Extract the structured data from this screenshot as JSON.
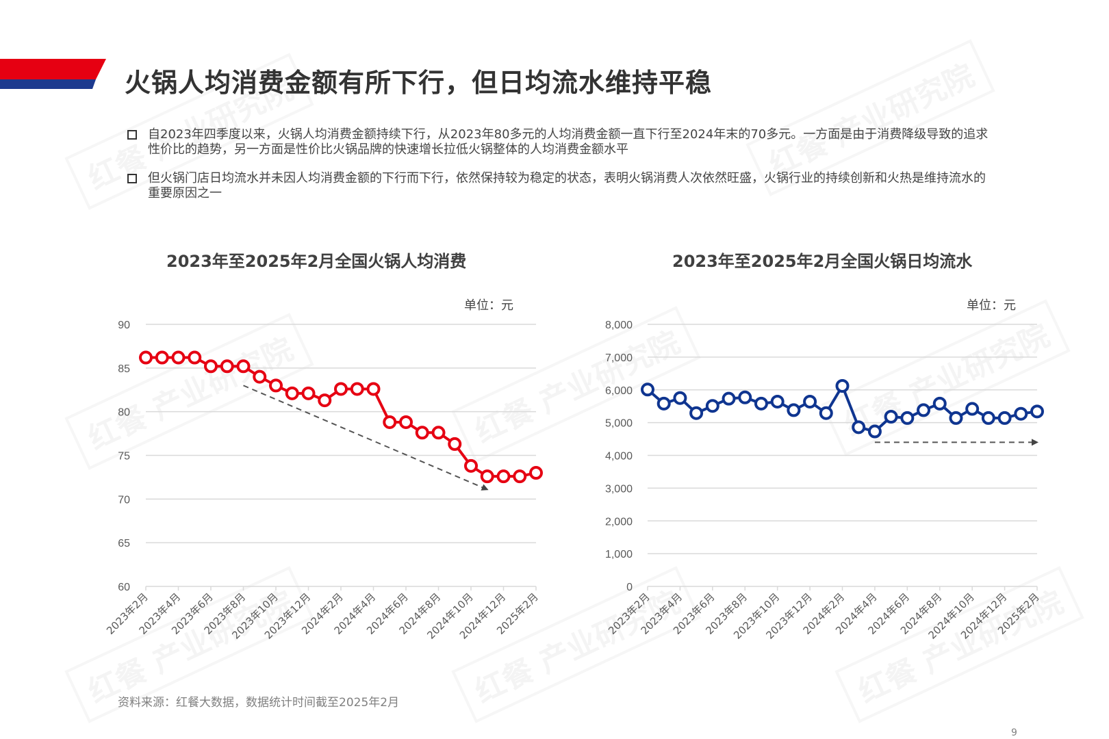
{
  "header": {
    "title": "火锅人均消费金额有所下行，但日均流水维持平稳",
    "banner_colors": {
      "red": "#e60012",
      "blue": "#1d3a8f"
    }
  },
  "bullets": [
    {
      "text": "自2023年四季度以来，火锅人均消费金额持续下行，从2023年80多元的人均消费金额一直下行至2024年末的70多元。一方面是由于消费降级导致的追求性价比的趋势，另一方面是性价比火锅品牌的快速增长拉低火锅整体的人均消费金额水平"
    },
    {
      "text": "但火锅门店日均流水并未因人均消费金额的下行而下行，依然保持较为稳定的状态，表明火锅消费人次依然旺盛，火锅行业的持续创新和火热是维持流水的重要原因之一"
    }
  ],
  "watermark": "红餐 产业研究院",
  "footer": {
    "source": "资料来源：红餐大数据，数据统计时间截至2025年2月",
    "page_number": "9"
  },
  "chart_data": [
    {
      "type": "line",
      "title": "2023年至2025年2月全国火锅人均消费",
      "unit_label": "单位：元",
      "xlabel": "",
      "ylabel": "元",
      "ylim": [
        60,
        90
      ],
      "yticks": [
        60,
        65,
        70,
        75,
        80,
        85,
        90
      ],
      "grid": true,
      "legend": "none",
      "color": "#e60012",
      "x": [
        "2023年2月",
        "2023年3月",
        "2023年4月",
        "2023年5月",
        "2023年6月",
        "2023年7月",
        "2023年8月",
        "2023年9月",
        "2023年10月",
        "2023年11月",
        "2023年12月",
        "2024年1月",
        "2024年2月",
        "2024年3月",
        "2024年4月",
        "2024年5月",
        "2024年6月",
        "2024年7月",
        "2024年8月",
        "2024年9月",
        "2024年10月",
        "2024年11月",
        "2024年12月",
        "2025年1月",
        "2025年2月"
      ],
      "xtick_labels": [
        "2023年2月",
        "2023年4月",
        "2023年6月",
        "2023年8月",
        "2023年10月",
        "2023年12月",
        "2024年2月",
        "2024年4月",
        "2024年6月",
        "2024年8月",
        "2024年10月",
        "2024年12月",
        "2025年2月"
      ],
      "values": [
        86.2,
        86.2,
        86.2,
        86.2,
        85.2,
        85.2,
        85.2,
        84.0,
        83.0,
        82.1,
        82.1,
        81.3,
        82.6,
        82.6,
        82.6,
        78.8,
        78.8,
        77.6,
        77.6,
        76.3,
        73.8,
        72.6,
        72.6,
        72.6,
        73.0
      ],
      "annotations": [
        {
          "type": "dashed-arrow",
          "from": [
            "2023年8月",
            83.0
          ],
          "to": [
            "2024年11月",
            71.1
          ],
          "meaning": "downward trend"
        }
      ]
    },
    {
      "type": "line",
      "title": "2023年至2025年2月全国火锅日均流水",
      "unit_label": "单位：元",
      "xlabel": "",
      "ylabel": "元",
      "ylim": [
        0,
        8000
      ],
      "yticks": [
        "0",
        "1,000",
        "2,000",
        "3,000",
        "4,000",
        "5,000",
        "6,000",
        "7,000",
        "8,000"
      ],
      "grid": true,
      "legend": "none",
      "color": "#0f3590",
      "x": [
        "2023年2月",
        "2023年3月",
        "2023年4月",
        "2023年5月",
        "2023年6月",
        "2023年7月",
        "2023年8月",
        "2023年9月",
        "2023年10月",
        "2023年11月",
        "2023年12月",
        "2024年1月",
        "2024年2月",
        "2024年3月",
        "2024年4月",
        "2024年5月",
        "2024年6月",
        "2024年7月",
        "2024年8月",
        "2024年9月",
        "2024年10月",
        "2024年11月",
        "2024年12月",
        "2025年1月",
        "2025年2月"
      ],
      "xtick_labels": [
        "2023年2月",
        "2023年4月",
        "2023年6月",
        "2023年8月",
        "2023年10月",
        "2023年12月",
        "2024年2月",
        "2024年4月",
        "2024年6月",
        "2024年8月",
        "2024年10月",
        "2024年12月",
        "2025年2月"
      ],
      "values": [
        6010,
        5580,
        5750,
        5290,
        5510,
        5730,
        5770,
        5580,
        5640,
        5380,
        5640,
        5290,
        6120,
        4860,
        4730,
        5180,
        5140,
        5380,
        5580,
        5140,
        5420,
        5140,
        5140,
        5270,
        5340
      ],
      "annotations": [
        {
          "type": "dashed-arrow",
          "from": [
            "2024年4月",
            4400
          ],
          "to": [
            "2025年2月",
            4400
          ],
          "meaning": "stable trend"
        }
      ]
    }
  ]
}
